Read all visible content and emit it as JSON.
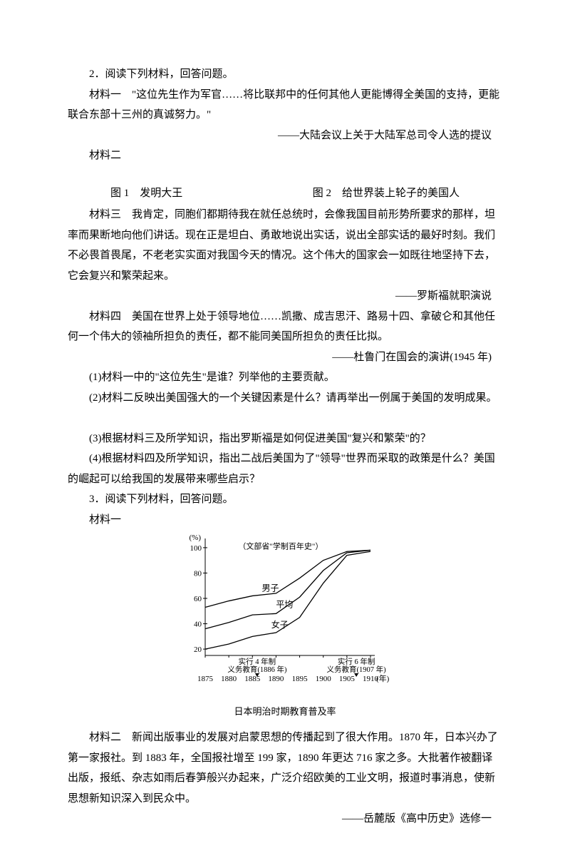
{
  "q2": {
    "prompt": "2．阅读下列材料，回答问题。",
    "m1_label": "材料一",
    "m1_text": "\"这位先生作为军官……将比联邦中的任何其他人更能博得全美国的支持，更能联合东部十三州的真诚努力。\"",
    "m1_source": "——大陆会议上关于大陆军总司令人选的提议",
    "m2_label": "材料二",
    "fig1_label": "图 1　发明大王",
    "fig2_label": "图 2　给世界装上轮子的美国人",
    "m3_label": "材料三",
    "m3_text_a": "我肯定，同胞们都期待我在就任总统时，会像我国目前形势所要求的那样，坦率而果断地向他们讲话。现在正是坦白、勇敢地说出实话，说出全部实话的最好时刻。我们不必畏首畏尾，不老老实实面对我国今天的情况。这个伟大的国家会一如既往地坚持下去，它会复兴和繁荣起来。",
    "m3_source": "——罗斯福就职演说",
    "m4_label": "材料四",
    "m4_text": "美国在世界上处于领导地位……凯撒、成吉思汗、路易十四、拿破仑和其他任何一个伟大的领袖所担负的责任，都不能同美国所担负的责任比拟。",
    "m4_source": "——杜鲁门在国会的演讲(1945 年)",
    "sub1": "(1)材料一中的\"这位先生\"是谁？列举他的主要贡献。",
    "sub2": "(2)材料二反映出美国强大的一个关键因素是什么？请再举出一例属于美国的发明成果。",
    "sub3": "(3)根据材料三及所学知识，指出罗斯福是如何促进美国\"复兴和繁荣\"的？",
    "sub4": "(4)根据材料四及所学知识，指出二战后美国为了\"领导\"世界而采取的政策是什么？美国的崛起可以给我国的发展带来哪些启示？"
  },
  "q3": {
    "prompt": "3．阅读下列材料，回答问题。",
    "m1_label": "材料一",
    "chart": {
      "type": "line",
      "y_unit": "(%)",
      "y_ticks": [
        20,
        40,
        60,
        80,
        100
      ],
      "ylim": [
        15,
        105
      ],
      "x_years": [
        1875,
        1880,
        1885,
        1890,
        1895,
        1900,
        1905,
        1910
      ],
      "x_unit": "(年)",
      "series": [
        {
          "name": "男子",
          "label_x": 1887,
          "label_y": 66,
          "data": [
            [
              1875,
              53
            ],
            [
              1880,
              58
            ],
            [
              1885,
              62
            ],
            [
              1890,
              64
            ],
            [
              1895,
              76
            ],
            [
              1900,
              90
            ],
            [
              1905,
              97
            ],
            [
              1910,
              98
            ]
          ]
        },
        {
          "name": "平均",
          "label_x": 1890,
          "label_y": 53,
          "data": [
            [
              1875,
              36
            ],
            [
              1880,
              41
            ],
            [
              1885,
              47
            ],
            [
              1890,
              48
            ],
            [
              1895,
              61
            ],
            [
              1900,
              82
            ],
            [
              1905,
              96
            ],
            [
              1910,
              98
            ]
          ]
        },
        {
          "name": "女子",
          "label_x": 1889,
          "label_y": 37,
          "data": [
            [
              1875,
              20
            ],
            [
              1880,
              24
            ],
            [
              1885,
              30
            ],
            [
              1890,
              33
            ],
            [
              1895,
              45
            ],
            [
              1900,
              72
            ],
            [
              1905,
              94
            ],
            [
              1910,
              97
            ]
          ]
        }
      ],
      "top_note": "（文部省\"学制百年史\"）",
      "markers": [
        {
          "text1": "实行 4 年制",
          "text2": "义务教育(1886 年)",
          "year": 1886
        },
        {
          "text1": "实行 6 年制",
          "text2": "义务教育(1907 年)",
          "year": 1907
        }
      ],
      "caption": "日本明治时期教育普及率",
      "stroke": "#000000",
      "grid": "#000000",
      "axis_width": 1,
      "fontsize": 11
    },
    "m2_label": "材料二",
    "m2_text": "新闻出版事业的发展对启蒙思想的传播起到了很大作用。1870 年，日本兴办了第一家报社。到 1883 年，全国报社增至 199 家，1890 年更达 716 家之多。大批著作被翻译出版，报纸、杂志如雨后春笋般兴办起来，广泛介绍欧美的工业文明，报道时事消息，使新思想新知识深入到民众中。",
    "m2_source": "——岳麓版《高中历史》选修一"
  }
}
